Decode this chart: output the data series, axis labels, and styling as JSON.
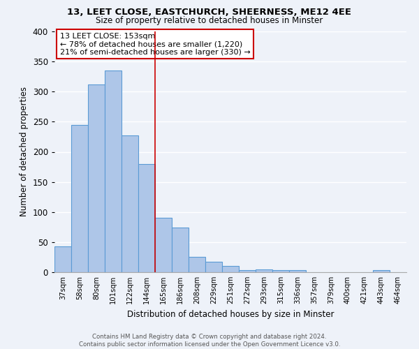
{
  "title1": "13, LEET CLOSE, EASTCHURCH, SHEERNESS, ME12 4EE",
  "title2": "Size of property relative to detached houses in Minster",
  "xlabel": "Distribution of detached houses by size in Minster",
  "ylabel": "Number of detached properties",
  "categories": [
    "37sqm",
    "58sqm",
    "80sqm",
    "101sqm",
    "122sqm",
    "144sqm",
    "165sqm",
    "186sqm",
    "208sqm",
    "229sqm",
    "251sqm",
    "272sqm",
    "293sqm",
    "315sqm",
    "336sqm",
    "357sqm",
    "379sqm",
    "400sqm",
    "421sqm",
    "443sqm",
    "464sqm"
  ],
  "values": [
    43,
    245,
    312,
    335,
    227,
    180,
    90,
    74,
    26,
    17,
    10,
    4,
    5,
    3,
    3,
    0,
    0,
    0,
    0,
    3,
    0
  ],
  "bar_color": "#aec6e8",
  "bar_edge_color": "#5b9bd5",
  "vline_x": 5.5,
  "vline_color": "#cc0000",
  "annotation_title": "13 LEET CLOSE: 153sqm",
  "annotation_line1": "← 78% of detached houses are smaller (1,220)",
  "annotation_line2": "21% of semi-detached houses are larger (330) →",
  "annotation_box_color": "#ffffff",
  "annotation_box_edge_color": "#cc0000",
  "ylim": [
    0,
    400
  ],
  "yticks": [
    0,
    50,
    100,
    150,
    200,
    250,
    300,
    350,
    400
  ],
  "footer1": "Contains HM Land Registry data © Crown copyright and database right 2024.",
  "footer2": "Contains public sector information licensed under the Open Government Licence v3.0.",
  "bg_color": "#eef2f9"
}
